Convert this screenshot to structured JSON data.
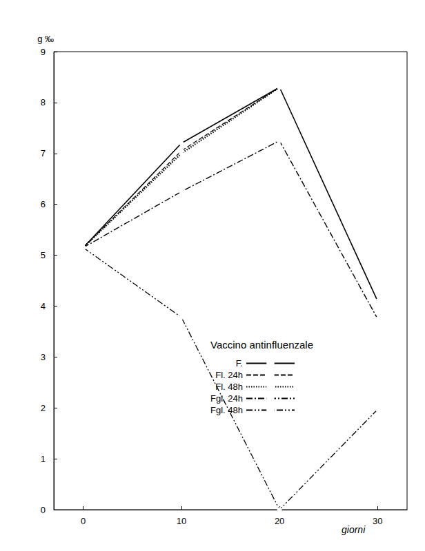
{
  "chart_data": {
    "type": "line",
    "title": "Vaccino antinfluenzale",
    "x_label": "giorni",
    "y_label": "g ‰",
    "xlim": [
      -3,
      33
    ],
    "xticks": [
      0,
      10,
      20,
      30
    ],
    "ylim": [
      0,
      9
    ],
    "yticks": [
      0,
      1,
      2,
      3,
      4,
      5,
      6,
      7,
      8,
      9
    ],
    "grid": false,
    "legend": "lower right",
    "x": [
      0,
      10,
      20,
      30
    ],
    "series": [
      {
        "name": "F.",
        "color": "#000000",
        "line_style": "solid",
        "marker": "circle",
        "values": [
          5.15,
          7.2,
          8.3,
          4.1
        ]
      },
      {
        "name": "Fl. 24h",
        "color": "#000000",
        "line_style": "dashed",
        "marker": "circle",
        "values": [
          5.15,
          7.05,
          8.3,
          null
        ]
      },
      {
        "name": "Fl. 48h",
        "color": "#000000",
        "line_style": "dotted",
        "marker": "circle",
        "values": [
          5.15,
          7.0,
          8.3,
          null
        ]
      },
      {
        "name": "Fgl. 24h",
        "color": "#000000",
        "line_style": "dashdot",
        "marker": "circle",
        "values": [
          5.15,
          6.25,
          7.25,
          3.75
        ]
      },
      {
        "name": "Fgl. 48h",
        "color": "#000000",
        "line_style": "dashdotdot",
        "marker": "circle",
        "values": [
          5.15,
          3.78,
          0,
          1.97
        ]
      }
    ]
  }
}
